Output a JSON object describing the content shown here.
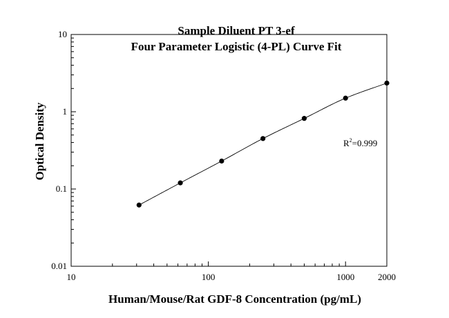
{
  "chart_data": {
    "type": "scatter",
    "title": "Sample Diluent PT 3-ef",
    "subtitle": "Four Parameter Logistic (4-PL) Curve Fit",
    "xlabel": "Human/Mouse/Rat GDF-8 Concentration (pg/mL)",
    "ylabel": "Optical Density",
    "xscale": "log",
    "yscale": "log",
    "xlim": [
      10,
      2000
    ],
    "ylim": [
      0.01,
      10
    ],
    "x_ticks": [
      10,
      100,
      1000,
      2000
    ],
    "x_tick_labels": [
      "10",
      "100",
      "1000",
      "2000"
    ],
    "y_ticks": [
      0.01,
      0.1,
      1,
      10
    ],
    "y_tick_labels": [
      "0.01",
      "0.1",
      "1",
      "10"
    ],
    "grid": false,
    "series": [
      {
        "x": [
          31.25,
          62.5,
          125,
          250,
          500,
          1000,
          2000
        ],
        "y": [
          0.062,
          0.12,
          0.23,
          0.45,
          0.82,
          1.5,
          2.35
        ]
      }
    ],
    "annotation": {
      "r_prefix": "R",
      "r_exp": "2",
      "r_value": "=0.999"
    }
  }
}
